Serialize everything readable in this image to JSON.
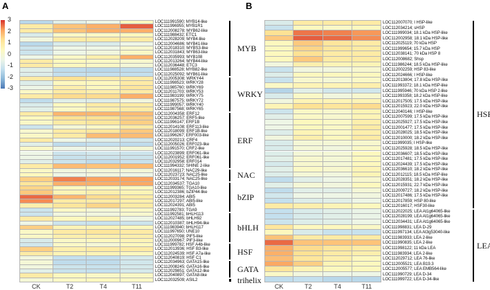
{
  "chart_data": [
    {
      "type": "heatmap",
      "panel": "A",
      "columns": [
        "CK",
        "T2",
        "T4",
        "T11"
      ],
      "colorbar": {
        "ticks": [
          "3",
          "2",
          "1",
          "0",
          "-1",
          "-2",
          "-3"
        ],
        "range": [
          -3,
          3
        ]
      },
      "groups": [
        {
          "name": "MYB",
          "rows": 13
        },
        {
          "name": "WRKY",
          "rows": 8
        },
        {
          "name": "ERF",
          "rows": 13
        },
        {
          "name": "NAC",
          "rows": 3
        },
        {
          "name": "bZIP",
          "rows": 7
        },
        {
          "name": "bHLH",
          "rows": 7
        },
        {
          "name": "HSF",
          "rows": 4
        },
        {
          "name": "GATA",
          "rows": 4
        },
        {
          "name": "trihelix",
          "rows": 1
        }
      ],
      "rows": [
        "LOC111991590; MYB14-like",
        "LOC111996955; MYB1R1",
        "LOC112008278; MYB62-like",
        "LOC111988432; ETC1",
        "LOC112028209; MYB4-like",
        "LOC112004686; MYB41-like",
        "LOC112018310; MYBS3-like",
        "LOC112031843; MYB63-like",
        "LOC112035993; MYB108",
        "LOC112013264; MYB44-like",
        "LOC112036448; ETC3",
        "LOC111988528; MYB82-like",
        "LOC112025092; MYB61-like",
        "LOC112005308; WRKY44",
        "LOC111998523; WRKY28",
        "LOC111985760; WRKY69",
        "LOC112011703; WRKY53",
        "LOC111983199; WRKY75",
        "LOC111987575; WRKY72",
        "LOC111999057; WRKY40",
        "LOC111987568; WRKY65",
        "LOC112004358; ERF12",
        "LOC112036257; ERF5-like",
        "LOC111996147; ERF1B",
        "LOC112014108; ERF113-like",
        "LOC112018099; ERF1B-like",
        "LOC111996267; ERF003-like",
        "LOC112020213; CRF4",
        "LOC112005026; ERF023-like",
        "LOC111991570; CRF2-like",
        "LOC112023899; ERF061-like",
        "LOC112001952; ERF061-like",
        "LOC112032958; ERF014",
        "LOC111994332; SHINE 2-like",
        "LOC112016117; NAC29-like",
        "LOC112023723; NAC25-like",
        "LOC112033174; NAC25-like",
        "LOC112034537; TGA10",
        "LOC111999365; TGA10-like",
        "LOC112012386; bZIP44-like",
        "LOC112003284; ABI5",
        "LOC112017297; ABI5-like",
        "LOC112024391; ABI5",
        "LOC111992783; TGA9",
        "LOC111992581; bHLH113",
        "LOC112027485; bHLH92",
        "LOC112010387; bHLH94-like",
        "LOC111983940; bHLH117",
        "LOC111997650; UNE10",
        "LOC112027098; PIF5-like",
        "LOC112000967; PIF3-like",
        "LOC111999782; HSF A4b-like",
        "LOC112013936; HSF B3-like",
        "LOC112024539; HSF A7a-like",
        "LOC112040819; HSF C1",
        "LOC112034963; GATA15-like",
        "LOC112008245; GATA16-like",
        "LOC112029851; GATA12-like",
        "LOC112040897; GATA8-like",
        "LOC112032509; ASIL2"
      ],
      "values": [
        [
          -1.2,
          -0.3,
          0,
          0.5
        ],
        [
          0.8,
          1.5,
          1.8,
          2.6
        ],
        [
          0.8,
          1.5,
          1.8,
          1.8
        ],
        [
          -0.5,
          0.4,
          0.4,
          0.5
        ],
        [
          0.1,
          0.8,
          0.8,
          0.8
        ],
        [
          -1.2,
          -0.5,
          -0.5,
          0
        ],
        [
          -0.8,
          0,
          0,
          0.3
        ],
        [
          -0.8,
          0,
          0.1,
          0.4
        ],
        [
          0,
          0.4,
          0.7,
          1.8
        ],
        [
          0.8,
          0.5,
          0.4,
          0.3
        ],
        [
          0.8,
          0.5,
          0.4,
          0.2
        ],
        [
          -0.3,
          -1.1,
          -1.2,
          -1.1
        ],
        [
          -0.4,
          -1,
          -1,
          -1
        ],
        [
          0.8,
          1.0,
          0.8,
          0.8
        ],
        [
          -0.4,
          0.5,
          0.5,
          0.8
        ],
        [
          0,
          0.7,
          0.5,
          0.9
        ],
        [
          0.4,
          0.8,
          0.7,
          0.8
        ],
        [
          0.8,
          1.1,
          1.1,
          1.8
        ],
        [
          -1.1,
          -0.3,
          -0.4,
          0.1
        ],
        [
          -0.5,
          0.5,
          0.8,
          0.8
        ],
        [
          -0.3,
          0.4,
          0.7,
          0.8
        ],
        [
          0.8,
          1.7,
          1.7,
          1.6
        ],
        [
          0.5,
          1.0,
          1.0,
          1.3
        ],
        [
          0.4,
          0.8,
          0.9,
          1.3
        ],
        [
          -0.8,
          0.2,
          0.4,
          0.8
        ],
        [
          0.3,
          0.8,
          0.9,
          1.4
        ],
        [
          0.4,
          0.8,
          1.6,
          1.6
        ],
        [
          0.8,
          0,
          -0.3,
          -0.7
        ],
        [
          -0.3,
          -1.1,
          -1.0,
          -1.1
        ],
        [
          0.4,
          0,
          0,
          0.2
        ],
        [
          0,
          -0.8,
          -0.7,
          -0.8
        ],
        [
          0,
          -0.9,
          -0.8,
          -0.8
        ],
        [
          -0.3,
          -0.8,
          -1.1,
          -0.9
        ],
        [
          0.8,
          1.6,
          1.5,
          1.6
        ],
        [
          0.4,
          0.1,
          0.2,
          0.2
        ],
        [
          0.5,
          0,
          0.1,
          0
        ],
        [
          1.3,
          2.3,
          2.0,
          2.0
        ],
        [
          0.9,
          1.8,
          1.8,
          1.9
        ],
        [
          1.2,
          0.5,
          0.5,
          0.5
        ],
        [
          1.4,
          0.6,
          0.7,
          0.6
        ],
        [
          2.5,
          1.7,
          1.1,
          0.8
        ],
        [
          2.2,
          0.8,
          0.8,
          0.7
        ],
        [
          0.7,
          0.9,
          1.2,
          0.8
        ],
        [
          -0.8,
          0.4,
          0.2,
          0.4
        ],
        [
          -0.8,
          0.1,
          0.1,
          0.3
        ],
        [
          0.8,
          0.5,
          0.6,
          0
        ],
        [
          0,
          -0.8,
          -0.9,
          -0.8
        ],
        [
          1.3,
          0.6,
          0.6,
          0.5
        ],
        [
          0.4,
          0.8,
          0.9,
          0.8
        ],
        [
          0.4,
          0.7,
          0.7,
          0.7
        ],
        [
          -0.5,
          0.4,
          0.5,
          0.6
        ],
        [
          -0.7,
          0.4,
          0.2,
          0.5
        ],
        [
          1.3,
          0.7,
          0.8,
          0.8
        ],
        [
          0.8,
          0.6,
          0.6,
          0.5
        ],
        [
          0.1,
          -1,
          -1,
          -0.6
        ],
        [
          0.2,
          -1.1,
          -1.1,
          -0.7
        ],
        [
          0.1,
          -0.8,
          -0.9,
          -0.6
        ],
        [
          -0.3,
          -0.9,
          -1,
          -0.6
        ],
        [
          0.8,
          0.5,
          0.4,
          0.4
        ],
        [
          0.2,
          0.4,
          0.5,
          0.4
        ]
      ]
    },
    {
      "type": "heatmap",
      "panel": "B",
      "columns": [
        "CK",
        "T2",
        "T4",
        "T11"
      ],
      "groups": [
        {
          "name": "HSP",
          "rows": 36
        },
        {
          "name": "LEA",
          "rows": 14
        }
      ],
      "rows": [
        "LOC112007070; I HSP-like",
        "LOC112034214; sHSP",
        "LOC111999034; 18.1 kDa HSP-like",
        "LOC112002958; 18.1 kDa HSP-like",
        "LOC112025119; 70 kDa HSP",
        "LOC111999654; 15.7 kDa HSP",
        "LOC112038141; 70 kDa HSP 8",
        "LOC112008682; Shsp",
        "LOC111986244; 18.5 kDa HSP-like",
        "LOC112002259; HSP 83-like",
        "LOC112024666; I HSP-like",
        "LOC112013804; 17.8 kDa HSP-like",
        "LOC111993372; 18.1 kDa HSP-like",
        "LOC111995946; 70 kDa HSP 2-like",
        "LOC111993358; 18.2 kDa HSP-like",
        "LOC112017505; 17.5 kDa HSP-like",
        "LOC112015923; 22.0 kDa HSP-like",
        "LOC112040146; I HSP-like",
        "LOC112007599; 17.5 kDa HSP-like",
        "LOC112025927; 17.5 kDa HSP-like",
        "LOC112001477; 17.5 kDa HSP-like",
        "LOC112028025; 18.5 kDa HSP-like",
        "LOC112010000; 18.2 kDa HSP-like",
        "LOC111999035; I HSP-like",
        "LOC112025928; 18.5 kDa HSP-like",
        "LOC112036607; 18.5 kDa HSP-like",
        "LOC112017481; 17.5 kDa HSP-like",
        "LOC112024439; 17.5 kDa HSP-like",
        "LOC112036610; 18.2 kDa HSP-like",
        "LOC112012115; 18.5 kDa HSP-like",
        "LOC112028351; 18.2 kDa HSP-like",
        "LOC112015931; 22.7 kDa HSP-like",
        "LOC112009727; 18.2 kDa HSP-like",
        "LOC112017486; 17.5 kDa HSP-like",
        "LOC112017859; HSP 80-like",
        "LOC112016017; HSF30-like",
        "LOC112022025; LEA At1g64065-like",
        "LOC112028199; LEA At1g64065-like",
        "LOC112034431; LEA At1g64065-like",
        "LOC111998831; LEA D-29",
        "LOC111997134; LEA At3g53040-like",
        "LOC111983933;  LEA 2-like",
        "LOC111990835;  LEA 2-like",
        "LOC111998122; 11 kDa LEA",
        "LOC111983934; LEA 2-like",
        "LOC112029712; LEA 76-like",
        "LOC112005521; LEA B19.3",
        "LOC112005577; LEA EMB564-like",
        "LOC111990729; LEA D-34",
        "LOC111999722; LEA D-34-like"
      ],
      "values": [
        [
          -0.5,
          0.8,
          0.8,
          0.8
        ],
        [
          -0.9,
          0.5,
          0.4,
          0.5
        ],
        [
          1.0,
          2.4,
          2.3,
          2.1
        ],
        [
          1.4,
          2.6,
          2.5,
          2.2
        ],
        [
          0.5,
          1.4,
          0.9,
          0.8
        ],
        [
          0.5,
          1.2,
          0.9,
          0.8
        ],
        [
          0.5,
          1.0,
          0.8,
          0.8
        ],
        [
          0.5,
          1.4,
          0.8,
          0.8
        ],
        [
          0.1,
          0.7,
          0.6,
          0.6
        ],
        [
          -0.9,
          0.1,
          0.1,
          0.3
        ],
        [
          -0.4,
          0.5,
          0.5,
          0.5
        ],
        [
          -0.9,
          0.3,
          0.2,
          0.4
        ],
        [
          0.4,
          0.6,
          0.6,
          0.7
        ],
        [
          -1.3,
          -0.3,
          -0.7,
          -0.7
        ],
        [
          -0.5,
          0.4,
          0.1,
          0.3
        ],
        [
          0.1,
          0.6,
          0.6,
          0.6
        ],
        [
          0.6,
          1.0,
          0.9,
          1.1
        ],
        [
          -0.8,
          0.4,
          0.3,
          0.6
        ],
        [
          -0.3,
          0.4,
          0.3,
          0.6
        ],
        [
          0,
          0.5,
          0.4,
          0.7
        ],
        [
          0,
          0.5,
          0.4,
          0.8
        ],
        [
          -0.4,
          0.6,
          0.4,
          0.7
        ],
        [
          0.1,
          0.7,
          0.5,
          0.8
        ],
        [
          -0.5,
          0.2,
          0.2,
          0.3
        ],
        [
          -0.5,
          0.2,
          0.1,
          0.4
        ],
        [
          -0.4,
          0.2,
          0.2,
          0.5
        ],
        [
          -0.3,
          0.3,
          0.2,
          0.5
        ],
        [
          -0.6,
          0.3,
          0.2,
          0.5
        ],
        [
          -0.3,
          0.4,
          0.3,
          0.6
        ],
        [
          -0.4,
          0.2,
          0.1,
          0.6
        ],
        [
          -1.1,
          -0.3,
          0,
          0.3
        ],
        [
          -0.3,
          0.2,
          0.1,
          0.5
        ],
        [
          -1.1,
          -0.3,
          -0.3,
          0.2
        ],
        [
          -0.7,
          0,
          0,
          0.1
        ],
        [
          -1.0,
          -0.4,
          -0.3,
          0
        ],
        [
          0.8,
          0.7,
          0.6,
          0.5
        ],
        [
          -1.0,
          -0.5,
          -0.3,
          -0.1
        ],
        [
          -1.0,
          -0.5,
          -0.3,
          -0.1
        ],
        [
          -0.8,
          -0.4,
          -0.3,
          0
        ],
        [
          0.9,
          0.5,
          0.5,
          0.4
        ],
        [
          0.5,
          -0.5,
          -0.9,
          -0.9
        ],
        [
          1.5,
          0.8,
          0.8,
          0.8
        ],
        [
          2.5,
          1.5,
          1.5,
          1.5
        ],
        [
          1.8,
          1.1,
          0.9,
          0.8
        ],
        [
          1.8,
          1.0,
          0.8,
          0.7
        ],
        [
          1.6,
          0.9,
          0.7,
          0.5
        ],
        [
          1.9,
          1.3,
          0.6,
          0.5
        ],
        [
          0.9,
          0.6,
          0.5,
          0.5
        ],
        [
          0.4,
          0.1,
          0,
          0
        ],
        [
          -1.1,
          -1.0,
          -1.2,
          -1.2
        ]
      ]
    }
  ],
  "colors": {
    "scale": [
      "#4a78b5",
      "#8db9da",
      "#c4e0ee",
      "#eef6e6",
      "#fdf8be",
      "#fee294",
      "#fba35e",
      "#d7302a"
    ],
    "scale_values": [
      -3,
      -2,
      -1,
      0,
      0.5,
      1,
      2,
      3
    ]
  }
}
